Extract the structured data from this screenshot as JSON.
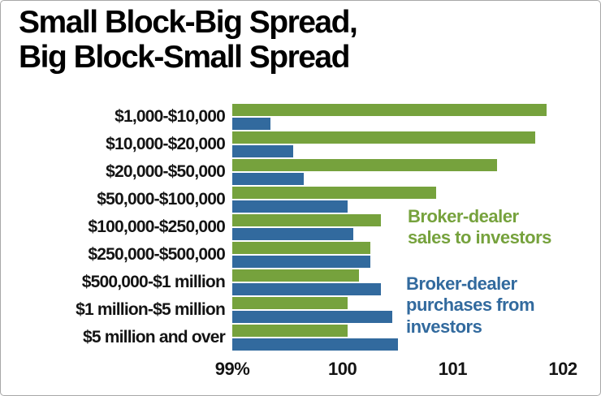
{
  "title": {
    "line1": "Small Block-Big Spread,",
    "line2": "Big Block-Small Spread"
  },
  "legend": {
    "sales": {
      "line1": "Broker-dealer",
      "line2": "sales to investors"
    },
    "purchases": {
      "line1": "Broker-dealer",
      "line2": "purchases from",
      "line3": "investors"
    }
  },
  "colors": {
    "sales_green": "#76a23d",
    "purchases_blue": "#326a9e"
  },
  "chart_data": {
    "type": "bar",
    "orientation": "horizontal",
    "title": "Small Block-Big Spread, Big Block-Small Spread",
    "categories": [
      "$1,000-$10,000",
      "$10,000-$20,000",
      "$20,000-$50,000",
      "$50,000-$100,000",
      "$100,000-$250,000",
      "$250,000-$500,000",
      "$500,000-$1 million",
      "$1 million-$5 million",
      "$5 million and over"
    ],
    "series": [
      {
        "name": "Broker-dealer sales to investors",
        "color": "#76a23d",
        "values": [
          101.85,
          101.75,
          101.4,
          100.85,
          100.35,
          100.25,
          100.15,
          100.05,
          100.05
        ]
      },
      {
        "name": "Broker-dealer purchases from investors",
        "color": "#326a9e",
        "values": [
          99.35,
          99.55,
          99.65,
          100.05,
          100.1,
          100.25,
          100.35,
          100.45,
          100.5
        ]
      }
    ],
    "xlim": [
      99,
      102
    ],
    "xticks": [
      {
        "value": 99,
        "label": "99%"
      },
      {
        "value": 100,
        "label": "100"
      },
      {
        "value": 101,
        "label": "101"
      },
      {
        "value": 102,
        "label": "102"
      }
    ],
    "grid": false,
    "legend_position": "inside-right",
    "bar_baseline": 99
  }
}
